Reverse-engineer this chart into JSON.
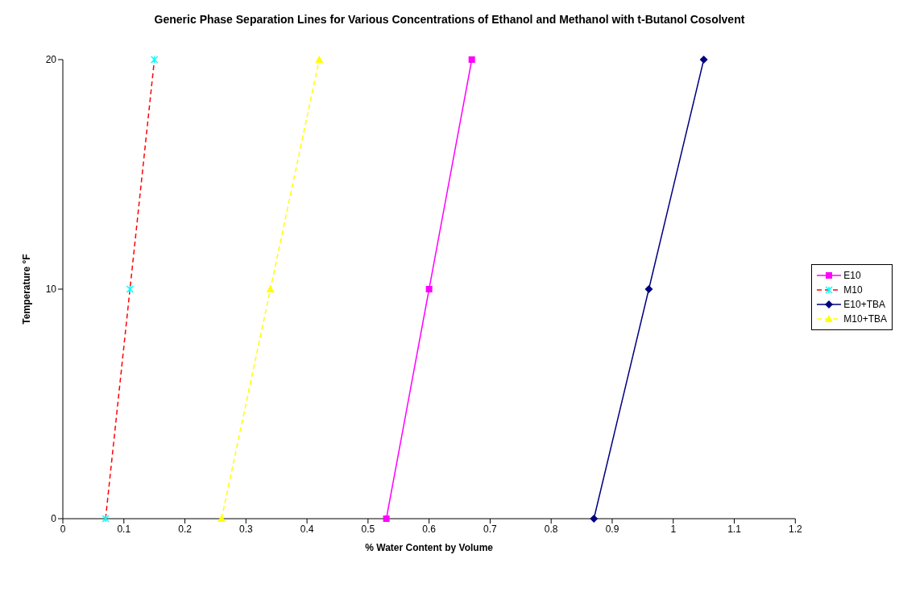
{
  "chart_data": {
    "type": "line",
    "title": "Generic Phase Separation Lines for Various Concentrations of Ethanol and Methanol with t-Butanol Cosolvent",
    "xlabel": "% Water Content by Volume",
    "ylabel": "Temperature °F",
    "xlim": [
      0,
      1.2
    ],
    "xticks": [
      0,
      0.1,
      0.2,
      0.3,
      0.4,
      0.5,
      0.6,
      0.7,
      0.8,
      0.9,
      1,
      1.1,
      1.2
    ],
    "ylim": [
      0,
      20
    ],
    "yticks": [
      0,
      10,
      20
    ],
    "grid": false,
    "legend": "right",
    "series": [
      {
        "name": "E10",
        "color": "#ff00ff",
        "marker": "square",
        "line_style": "solid",
        "x": [
          0.53,
          0.6,
          0.67
        ],
        "values": [
          0,
          10,
          20
        ]
      },
      {
        "name": "M10",
        "color": "#ff0000",
        "colors": [
          "#00ffff",
          "#00ffff",
          "#00ffff"
        ],
        "marker": "cross",
        "line_style": "dashed",
        "x": [
          0.07,
          0.11,
          0.15
        ],
        "values": [
          0,
          10,
          20
        ]
      },
      {
        "name": "E10+TBA",
        "color": "#000080",
        "marker": "diamond",
        "line_style": "solid",
        "x": [
          0.87,
          0.96,
          1.05
        ],
        "values": [
          0,
          10,
          20
        ]
      },
      {
        "name": "M10+TBA",
        "color": "#ffff00",
        "marker": "triangle",
        "line_style": "dashed",
        "x": [
          0.26,
          0.34,
          0.42
        ],
        "values": [
          0,
          10,
          20
        ]
      }
    ]
  }
}
